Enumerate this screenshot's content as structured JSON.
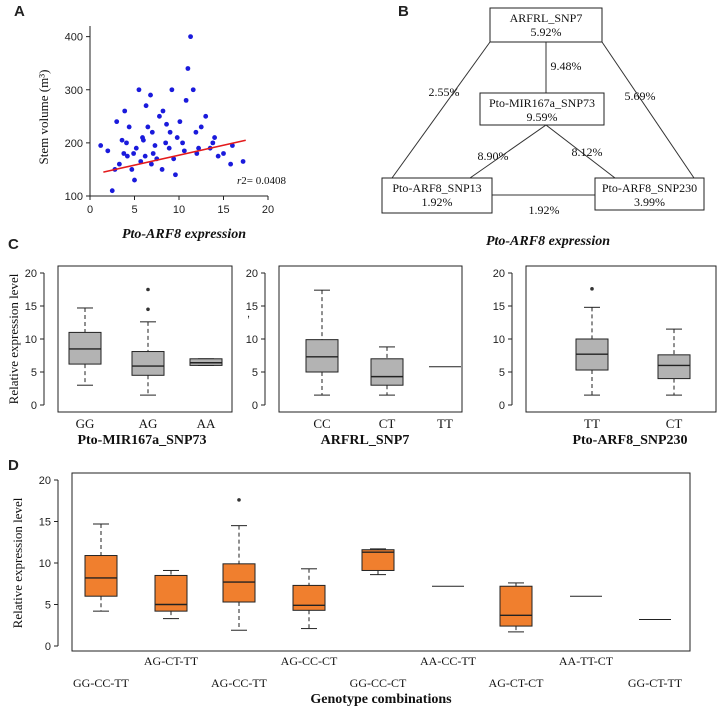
{
  "panels": {
    "a": "A",
    "b": "B",
    "c": "C",
    "d": "D"
  },
  "colors": {
    "scatter_point": "#1a1adc",
    "regression": "#e31a1c",
    "box_grey": "#b3b3b3",
    "box_orange": "#f07f2e",
    "edge_pct": "#e00000",
    "node_pct": "#1f1fd8",
    "axis": "#222222"
  },
  "chart_data": [
    {
      "id": "A",
      "type": "scatter",
      "xlabel": "Pto-ARF8 expression",
      "ylabel": "Stem volume (m³)",
      "xlim": [
        0,
        20
      ],
      "ylim": [
        100,
        420
      ],
      "xticks": [
        0,
        5,
        10,
        15,
        20
      ],
      "yticks": [
        100,
        200,
        300,
        400
      ],
      "x_tick_labels": [
        "0",
        "5",
        "10",
        "15",
        "20"
      ],
      "y_tick_labels": [
        "100",
        "200",
        "300",
        "400"
      ],
      "annotation_r": "r",
      "annotation_val": "2= 0.0408",
      "regression": {
        "x": [
          1.5,
          17.5
        ],
        "y": [
          145,
          205
        ]
      },
      "points": [
        [
          2.5,
          110
        ],
        [
          3.8,
          180
        ],
        [
          4.1,
          200
        ],
        [
          5.2,
          190
        ],
        [
          6.0,
          205
        ],
        [
          7.1,
          180
        ],
        [
          8.2,
          260
        ],
        [
          9.0,
          220
        ],
        [
          10.1,
          240
        ],
        [
          11.3,
          400
        ],
        [
          12.0,
          180
        ],
        [
          13.5,
          190
        ],
        [
          15.8,
          160
        ],
        [
          17.2,
          165
        ],
        [
          3.0,
          240
        ],
        [
          4.7,
          150
        ],
        [
          5.5,
          300
        ],
        [
          6.8,
          290
        ],
        [
          7.5,
          170
        ],
        [
          8.9,
          190
        ],
        [
          9.6,
          140
        ],
        [
          10.4,
          200
        ],
        [
          11.0,
          340
        ],
        [
          12.5,
          230
        ],
        [
          14.0,
          210
        ],
        [
          16.0,
          195
        ],
        [
          2.0,
          185
        ],
        [
          3.3,
          160
        ],
        [
          4.4,
          230
        ],
        [
          5.9,
          210
        ],
        [
          6.2,
          175
        ],
        [
          7.8,
          250
        ],
        [
          8.5,
          200
        ],
        [
          9.2,
          300
        ],
        [
          10.8,
          280
        ],
        [
          12.2,
          190
        ],
        [
          13.0,
          250
        ],
        [
          15.0,
          180
        ],
        [
          1.2,
          195
        ],
        [
          2.8,
          150
        ],
        [
          3.6,
          205
        ],
        [
          4.9,
          180
        ],
        [
          5.7,
          165
        ],
        [
          6.5,
          230
        ],
        [
          7.3,
          195
        ],
        [
          8.1,
          150
        ],
        [
          9.8,
          210
        ],
        [
          11.6,
          300
        ],
        [
          14.4,
          175
        ],
        [
          3.9,
          260
        ],
        [
          5.0,
          130
        ],
        [
          6.3,
          270
        ],
        [
          7.0,
          220
        ],
        [
          8.6,
          235
        ],
        [
          9.4,
          170
        ],
        [
          10.6,
          185
        ],
        [
          11.9,
          220
        ],
        [
          13.8,
          200
        ],
        [
          4.2,
          175
        ],
        [
          6.9,
          160
        ]
      ]
    },
    {
      "id": "C1",
      "type": "box",
      "ylabel": "Relative expression level",
      "xlabel": "Pto-MIR167a_SNP73",
      "ylim": [
        0,
        20
      ],
      "yticks": [
        0,
        5,
        10,
        15,
        20
      ],
      "y_tick_labels": [
        "0",
        "5",
        "10",
        "15",
        "20"
      ],
      "categories": [
        "GG",
        "AG",
        "AA"
      ],
      "boxes": [
        {
          "min": 3.0,
          "q1": 6.2,
          "median": 8.5,
          "q3": 11.0,
          "max": 14.7,
          "outliers": []
        },
        {
          "min": 1.5,
          "q1": 4.5,
          "median": 5.9,
          "q3": 8.1,
          "max": 12.6,
          "outliers": [
            14.5,
            17.5
          ]
        },
        {
          "min": 6.0,
          "q1": 6.0,
          "median": 6.4,
          "q3": 7.0,
          "max": 7.0,
          "outliers": []
        }
      ]
    },
    {
      "id": "C2",
      "type": "box",
      "xlabel": "ARFRL_SNP7",
      "ylim": [
        0,
        20
      ],
      "yticks": [
        0,
        5,
        10,
        15,
        20
      ],
      "y_tick_labels": [
        "0",
        "5",
        "10",
        "15",
        "20"
      ],
      "categories": [
        "CC",
        "CT",
        "TT"
      ],
      "boxes": [
        {
          "min": 1.5,
          "q1": 5.0,
          "median": 7.3,
          "q3": 9.9,
          "max": 17.4,
          "outliers": []
        },
        {
          "min": 1.5,
          "q1": 3.0,
          "median": 4.3,
          "q3": 7.0,
          "max": 8.8,
          "outliers": []
        },
        {
          "min": 5.8,
          "q1": 5.8,
          "median": 5.8,
          "q3": 5.8,
          "max": 5.8,
          "outliers": []
        }
      ]
    },
    {
      "id": "C3",
      "type": "box",
      "xlabel": "Pto-ARF8_SNP230",
      "ylim": [
        0,
        20
      ],
      "yticks": [
        0,
        5,
        10,
        15,
        20
      ],
      "y_tick_labels": [
        "0",
        "5",
        "10",
        "15",
        "20"
      ],
      "categories": [
        "TT",
        "CT"
      ],
      "boxes": [
        {
          "min": 1.5,
          "q1": 5.3,
          "median": 7.7,
          "q3": 10.0,
          "max": 14.8,
          "outliers": [
            17.6
          ]
        },
        {
          "min": 1.5,
          "q1": 4.0,
          "median": 6.0,
          "q3": 7.6,
          "max": 11.5,
          "outliers": []
        }
      ]
    },
    {
      "id": "D",
      "type": "box",
      "ylabel": "Relative expression level",
      "xlabel": "Genotype combinations",
      "ylim": [
        0,
        20
      ],
      "yticks": [
        0,
        5,
        10,
        15,
        20
      ],
      "y_tick_labels": [
        "0",
        "5",
        "10",
        "15",
        "20"
      ],
      "categories": [
        "GG-CC-TT",
        "AG-CT-TT",
        "AG-CC-TT",
        "AG-CC-CT",
        "GG-CC-CT",
        "AA-CC-TT",
        "AG-CT-CT",
        "AA-TT-CT",
        "GG-CT-TT"
      ],
      "boxes": [
        {
          "min": 4.2,
          "q1": 6.0,
          "median": 8.2,
          "q3": 10.9,
          "max": 14.7,
          "outliers": []
        },
        {
          "min": 3.3,
          "q1": 4.2,
          "median": 5.0,
          "q3": 8.5,
          "max": 9.1,
          "outliers": []
        },
        {
          "min": 1.9,
          "q1": 5.3,
          "median": 7.7,
          "q3": 9.9,
          "max": 14.5,
          "outliers": [
            17.6
          ]
        },
        {
          "min": 2.1,
          "q1": 4.3,
          "median": 4.9,
          "q3": 7.3,
          "max": 9.3,
          "outliers": []
        },
        {
          "min": 8.6,
          "q1": 9.1,
          "median": 11.3,
          "q3": 11.6,
          "max": 11.7,
          "outliers": []
        },
        {
          "min": 7.2,
          "q1": 7.2,
          "median": 7.2,
          "q3": 7.2,
          "max": 7.2,
          "outliers": []
        },
        {
          "min": 1.7,
          "q1": 2.4,
          "median": 3.7,
          "q3": 7.2,
          "max": 7.6,
          "outliers": []
        },
        {
          "min": 6.0,
          "q1": 6.0,
          "median": 6.0,
          "q3": 6.0,
          "max": 6.0,
          "outliers": []
        },
        {
          "min": 3.2,
          "q1": 3.2,
          "median": 3.2,
          "q3": 3.2,
          "max": 3.2,
          "outliers": []
        }
      ]
    }
  ],
  "network": {
    "nodes": [
      {
        "id": "top",
        "name": "ARFRL_SNP7",
        "pct": "5.92%"
      },
      {
        "id": "mid",
        "name": "Pto-MIR167a_SNP73",
        "pct": "9.59%"
      },
      {
        "id": "left",
        "name": "Pto-ARF8_SNP13",
        "pct": "1.92%"
      },
      {
        "id": "right",
        "name": "Pto-ARF8_SNP230",
        "pct": "3.99%"
      }
    ],
    "edges": [
      {
        "from": "top",
        "to": "left",
        "pct": "2.55%"
      },
      {
        "from": "top",
        "to": "mid",
        "pct": "9.48%"
      },
      {
        "from": "top",
        "to": "right",
        "pct": "5.69%"
      },
      {
        "from": "mid",
        "to": "left",
        "pct": "8.90%"
      },
      {
        "from": "mid",
        "to": "right",
        "pct": "8.12%"
      },
      {
        "from": "left",
        "to": "right",
        "pct": "1.92%"
      }
    ],
    "caption": "Pto-ARF8 expression"
  }
}
